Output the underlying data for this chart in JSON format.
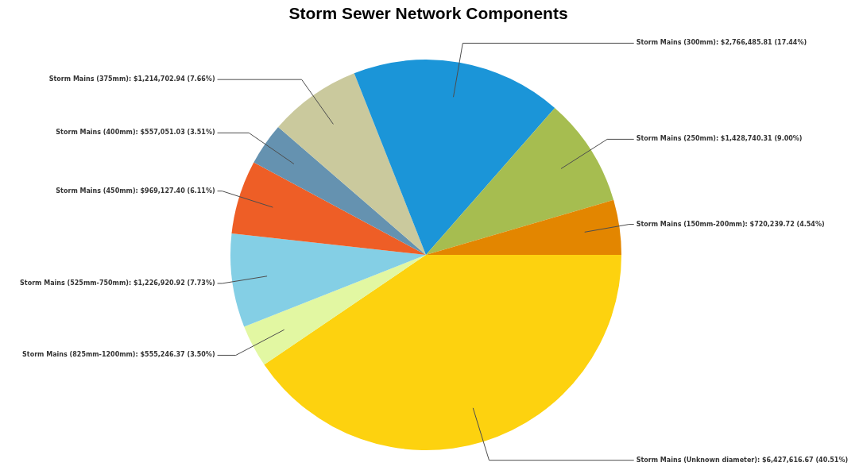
{
  "chart_data": {
    "type": "pie",
    "title": "Storm Sewer Network Components",
    "categories": [
      "Storm Mains (Unknown diameter)",
      "Storm Mains (825mm-1200mm)",
      "Storm Mains (525mm-750mm)",
      "Storm Mains (450mm)",
      "Storm Mains (400mm)",
      "Storm Mains (375mm)",
      "Storm Mains (300mm)",
      "Storm Mains (250mm)",
      "Storm Mains (150mm-200mm)"
    ],
    "values": [
      6427616.67,
      555246.37,
      1226920.92,
      969127.4,
      557051.03,
      1214702.94,
      2766485.81,
      1428740.31,
      720239.72
    ],
    "value_labels": [
      "$6,427,616.67 (40.51%)",
      "$555,246.37 (3.50%)",
      "$1,226,920.92 (7.73%)",
      "$969,127.40 (6.11%)",
      "$557,051.03 (3.51%)",
      "$1,214,702.94 (7.66%)",
      "$2,766,485.81 (17.44%)",
      "$1,428,740.31 (9.00%)",
      "$720,239.72 (4.54%)"
    ],
    "colors": [
      "#fdd20f",
      "#e2f7a2",
      "#84cfe5",
      "#ee5e26",
      "#6592b0",
      "#cac99d",
      "#1b95d8",
      "#a6bd50",
      "#e38600"
    ]
  }
}
